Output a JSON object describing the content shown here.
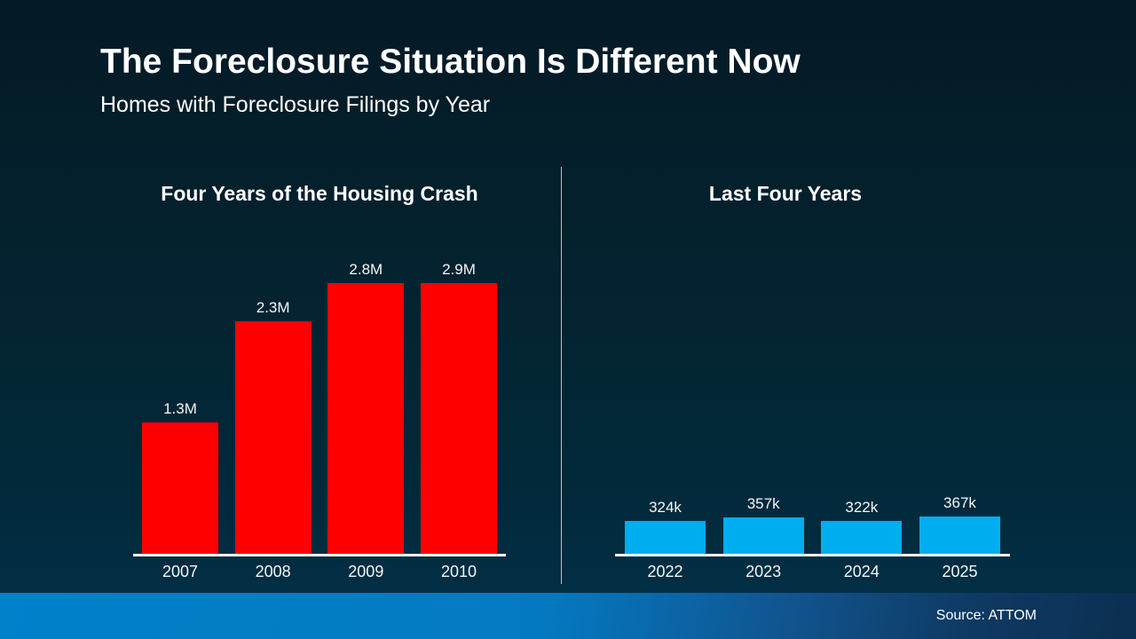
{
  "slide": {
    "title": "The Foreclosure Situation Is Different Now",
    "subtitle": "Homes with Foreclosure Filings by Year",
    "source": "Source: ATTOM",
    "colors": {
      "background_top": "#041a25",
      "background_bottom": "#013048",
      "crash_bar": "#ff0000",
      "recent_bar": "#00aeef",
      "footer_gradient_left": "#0081ca",
      "footer_gradient_right": "#0c2f52",
      "text": "#ffffff",
      "axis": "#ffffff"
    }
  },
  "chart_data": [
    {
      "type": "bar",
      "title": "Four Years of the Housing Crash",
      "categories": [
        "2007",
        "2008",
        "2009",
        "2010"
      ],
      "values": [
        1300000,
        2300000,
        2800000,
        2900000
      ],
      "value_labels": [
        "1.3M",
        "2.3M",
        "2.8M",
        "2.9M"
      ],
      "bar_color": "#ff0000",
      "ylim": [
        0,
        2900000
      ],
      "grid": false,
      "legend": false,
      "xlabel": "",
      "ylabel": ""
    },
    {
      "type": "bar",
      "title": "Last Four Years",
      "categories": [
        "2022",
        "2023",
        "2024",
        "2025"
      ],
      "values": [
        324000,
        357000,
        322000,
        367000
      ],
      "value_labels": [
        "324k",
        "357k",
        "322k",
        "367k"
      ],
      "bar_color": "#00aeef",
      "ylim": [
        0,
        2900000
      ],
      "grid": false,
      "legend": false,
      "xlabel": "",
      "ylabel": ""
    }
  ]
}
